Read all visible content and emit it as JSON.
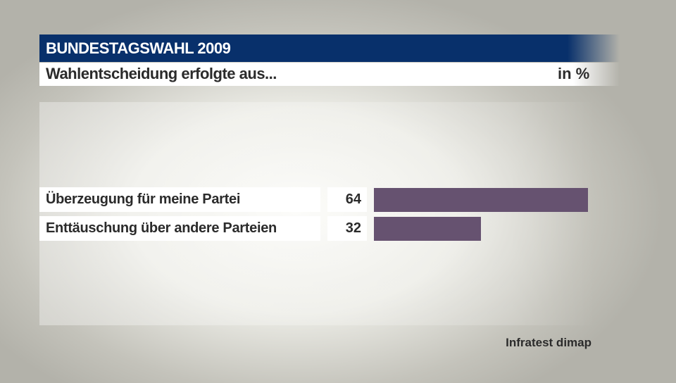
{
  "header": {
    "title": "BUNDESTAGSWAHL 2009",
    "subtitle": "Wahlentscheidung erfolgte aus...",
    "unit": "in %"
  },
  "chart_data": {
    "type": "bar",
    "orientation": "horizontal",
    "categories": [
      "Überzeugung für meine Partei",
      "Enttäuschung über andere Parteien"
    ],
    "values": [
      64,
      32
    ],
    "value_labels": [
      "64",
      "32"
    ],
    "title": "Wahlentscheidung erfolgte aus...",
    "unit": "in %",
    "bar_color": "#665270",
    "xlim": [
      0,
      100
    ],
    "grid": false,
    "legend": "none"
  },
  "footer": {
    "source": "Infratest dimap"
  }
}
